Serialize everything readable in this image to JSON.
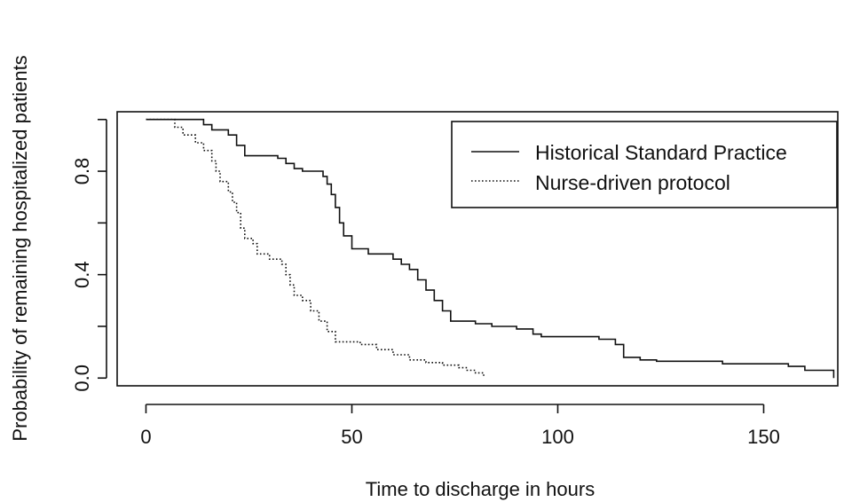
{
  "chart_data": {
    "type": "line",
    "title": "",
    "xlabel": "Time to discharge in hours",
    "ylabel": "Probability of remaining hospitalized patients",
    "xlim": [
      -7,
      168
    ],
    "ylim": [
      -0.03,
      1.03
    ],
    "xticks": [
      0,
      50,
      100,
      150
    ],
    "xtick_labels": [
      "0",
      "50",
      "100",
      "150"
    ],
    "yticks": [
      0,
      0.4,
      0.8
    ],
    "ytick_labels": [
      "0.0",
      "0.4",
      "0.8"
    ],
    "grid": false,
    "legend_position": "top-right",
    "series": [
      {
        "name": "Historical Standard Practice",
        "style": "solid",
        "step_points": [
          [
            0,
            1.0
          ],
          [
            14,
            0.98
          ],
          [
            16,
            0.96
          ],
          [
            20,
            0.94
          ],
          [
            22,
            0.9
          ],
          [
            24,
            0.86
          ],
          [
            32,
            0.85
          ],
          [
            34,
            0.83
          ],
          [
            36,
            0.81
          ],
          [
            38,
            0.8
          ],
          [
            43,
            0.78
          ],
          [
            44,
            0.75
          ],
          [
            45,
            0.71
          ],
          [
            46,
            0.66
          ],
          [
            47,
            0.6
          ],
          [
            48,
            0.55
          ],
          [
            50,
            0.5
          ],
          [
            54,
            0.48
          ],
          [
            60,
            0.46
          ],
          [
            62,
            0.44
          ],
          [
            64,
            0.42
          ],
          [
            66,
            0.38
          ],
          [
            68,
            0.34
          ],
          [
            70,
            0.3
          ],
          [
            72,
            0.26
          ],
          [
            74,
            0.22
          ],
          [
            80,
            0.21
          ],
          [
            84,
            0.2
          ],
          [
            90,
            0.19
          ],
          [
            94,
            0.17
          ],
          [
            96,
            0.16
          ],
          [
            110,
            0.15
          ],
          [
            114,
            0.13
          ],
          [
            116,
            0.08
          ],
          [
            120,
            0.07
          ],
          [
            124,
            0.065
          ],
          [
            140,
            0.055
          ],
          [
            156,
            0.045
          ],
          [
            160,
            0.03
          ],
          [
            167,
            0.0
          ]
        ]
      },
      {
        "name": "Nurse-driven protocol",
        "style": "dotted",
        "step_points": [
          [
            0,
            1.0
          ],
          [
            7,
            0.97
          ],
          [
            9,
            0.94
          ],
          [
            12,
            0.91
          ],
          [
            14,
            0.88
          ],
          [
            16,
            0.84
          ],
          [
            17,
            0.8
          ],
          [
            18,
            0.76
          ],
          [
            20,
            0.72
          ],
          [
            21,
            0.68
          ],
          [
            22,
            0.64
          ],
          [
            23,
            0.58
          ],
          [
            24,
            0.54
          ],
          [
            26,
            0.52
          ],
          [
            27,
            0.48
          ],
          [
            30,
            0.46
          ],
          [
            33,
            0.44
          ],
          [
            34,
            0.4
          ],
          [
            35,
            0.36
          ],
          [
            36,
            0.32
          ],
          [
            38,
            0.3
          ],
          [
            40,
            0.26
          ],
          [
            42,
            0.22
          ],
          [
            44,
            0.18
          ],
          [
            46,
            0.14
          ],
          [
            52,
            0.13
          ],
          [
            56,
            0.11
          ],
          [
            60,
            0.09
          ],
          [
            64,
            0.07
          ],
          [
            68,
            0.06
          ],
          [
            72,
            0.05
          ],
          [
            76,
            0.04
          ],
          [
            78,
            0.03
          ],
          [
            80,
            0.02
          ],
          [
            82,
            0.0
          ]
        ]
      }
    ]
  }
}
